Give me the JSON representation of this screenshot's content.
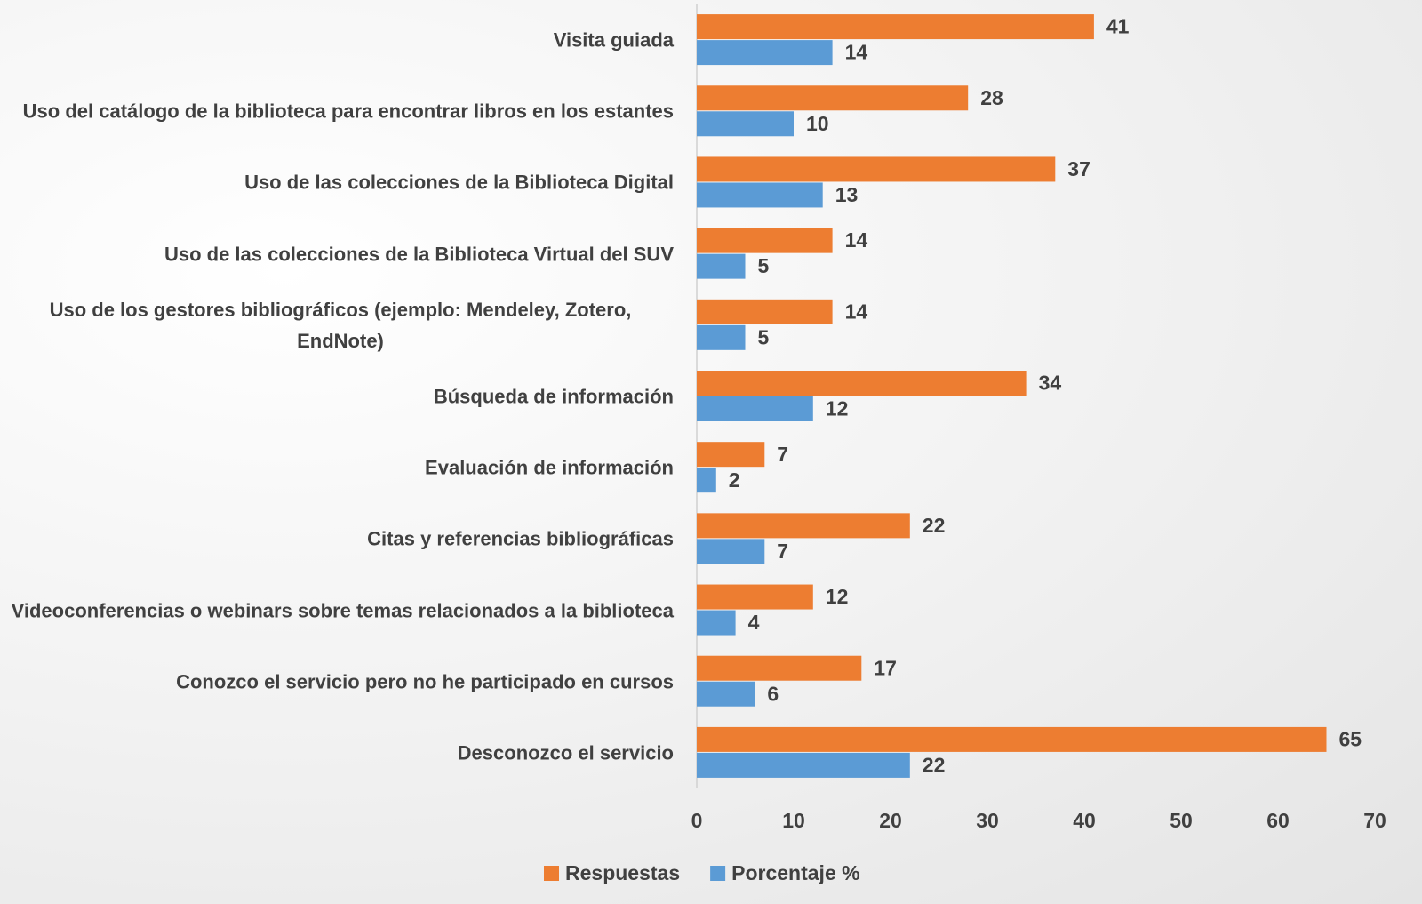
{
  "chart_data": {
    "type": "bar",
    "orientation": "horizontal",
    "categories": [
      "Visita guiada",
      "Uso del catálogo de la biblioteca para encontrar libros en los estantes",
      "Uso de las colecciones de la Biblioteca Digital",
      "Uso de las colecciones de la Biblioteca Virtual del SUV",
      "Uso de los gestores bibliográficos (ejemplo: Mendeley, Zotero, EndNote)",
      "Búsqueda de información",
      "Evaluación de información",
      "Citas y referencias bibliográficas",
      "Videoconferencias o webinars sobre temas relacionados a la biblioteca",
      "Conozco el servicio pero no he participado en cursos",
      "Desconozco el servicio"
    ],
    "series": [
      {
        "name": "Respuestas",
        "color": "#ed7d31",
        "values": [
          41,
          28,
          37,
          14,
          14,
          34,
          7,
          22,
          12,
          17,
          65
        ]
      },
      {
        "name": "Porcentaje %",
        "color": "#5b9bd5",
        "values": [
          14,
          10,
          13,
          5,
          5,
          12,
          2,
          7,
          4,
          6,
          22
        ]
      }
    ],
    "xlim": [
      0,
      70
    ],
    "xticks": [
      0,
      10,
      20,
      30,
      40,
      50,
      60,
      70
    ],
    "grid": false,
    "legend": "bottom"
  }
}
